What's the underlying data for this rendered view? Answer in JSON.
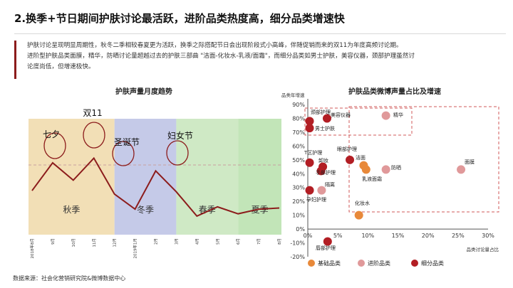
{
  "title": "2.换季+节日期间护肤讨论最活跃，进阶品类热度高，细分品类增速快",
  "body": {
    "line1": "护肤讨论呈现明显周期性，秋冬二季相较春夏更为活跃，换季之际搭配节日会出现阶段式小高峰，伴随促销而来的双11为年度高频讨论期。",
    "line2": "进阶型护肤品类面膜，精华，防晒讨论量超越过去的护肤三部曲 \"洁面-化妆水-乳液/面霜\"，而细分品类如男士护肤，美容仪器，颈部护理虽然讨",
    "line3": "论度尚低，但增速极快。"
  },
  "source": "数据来源：社会化营销研究院&微博数据中心",
  "colors": {
    "autumn": "#f2dfb6",
    "winter": "#c5cae8",
    "spring": "#cfe9c5",
    "summer": "#c2e5b8",
    "line": "#8c1c1c",
    "basic": "#e8893a",
    "advanced": "#e0999a",
    "niche": "#b21e24"
  },
  "chart_data": [
    {
      "type": "line",
      "title": "护肤声量月度趋势",
      "x": [
        "2018年8月",
        "9月",
        "10月",
        "11月",
        "12月",
        "2019年1月",
        "2月",
        "3月",
        "4月",
        "5月",
        "6月",
        "7月",
        "8月"
      ],
      "values": [
        0.38,
        0.62,
        0.47,
        0.66,
        0.35,
        0.22,
        0.55,
        0.37,
        0.16,
        0.24,
        0.18,
        0.22,
        0.23
      ],
      "seasons": [
        {
          "label": "秋季",
          "from": 0,
          "to": 4
        },
        {
          "label": "冬季",
          "from": 4,
          "to": 7
        },
        {
          "label": "春季",
          "from": 7,
          "to": 10
        },
        {
          "label": "夏季",
          "from": 10,
          "to": 12
        }
      ],
      "annotations": [
        "七夕",
        "双11",
        "圣诞节",
        "妇女节"
      ],
      "reference_line": true,
      "grid": false
    },
    {
      "type": "scatter",
      "title": "护肤品类微博声量占比及增速",
      "ylabel": "品类年增速",
      "xlabel": "品类讨论量占比",
      "xlim": [
        0,
        30
      ],
      "ylim": [
        -20,
        90
      ],
      "xticks": [
        "0%",
        "5%",
        "10%",
        "15%",
        "20%",
        "25%",
        "30%"
      ],
      "yticks": [
        "-20%",
        "-10%",
        "0%",
        "10%",
        "20%",
        "30%",
        "40%",
        "50%",
        "60%",
        "70%",
        "80%",
        "90%"
      ],
      "legend": [
        {
          "name": "基础品类",
          "color": "#e8893a"
        },
        {
          "name": "进阶品类",
          "color": "#e0999a"
        },
        {
          "name": "细分品类",
          "color": "#b21e24"
        }
      ],
      "points": [
        {
          "label": "颈部护理",
          "x": 0.3,
          "y": 78,
          "group": 2
        },
        {
          "label": "男士护肤",
          "x": 0.3,
          "y": 73,
          "group": 2
        },
        {
          "label": "美容仪器",
          "x": 3.2,
          "y": 80,
          "group": 2
        },
        {
          "label": "精华",
          "x": 13,
          "y": 82,
          "group": 1
        },
        {
          "label": "T区护理",
          "x": 0.3,
          "y": 48,
          "group": 2
        },
        {
          "label": "卸妆",
          "x": 2.5,
          "y": 45,
          "group": 2
        },
        {
          "label": "手部护理",
          "x": 2.2,
          "y": 42,
          "group": 2
        },
        {
          "label": "眼部护理",
          "x": 7,
          "y": 50,
          "group": 2
        },
        {
          "label": "洁面",
          "x": 9.3,
          "y": 46,
          "group": 0
        },
        {
          "label": "乳液面霜",
          "x": 9.7,
          "y": 43,
          "group": 0
        },
        {
          "label": "防晒",
          "x": 13,
          "y": 43,
          "group": 1
        },
        {
          "label": "面膜",
          "x": 25.5,
          "y": 43,
          "group": 1
        },
        {
          "label": "隔离",
          "x": 2.3,
          "y": 28,
          "group": 1
        },
        {
          "label": "孕妇护理",
          "x": 0.3,
          "y": 28,
          "group": 2
        },
        {
          "label": "化妆水",
          "x": 8.5,
          "y": 10,
          "group": 0
        },
        {
          "label": "唇部护理",
          "x": 3.3,
          "y": -9,
          "group": 2
        }
      ]
    }
  ]
}
